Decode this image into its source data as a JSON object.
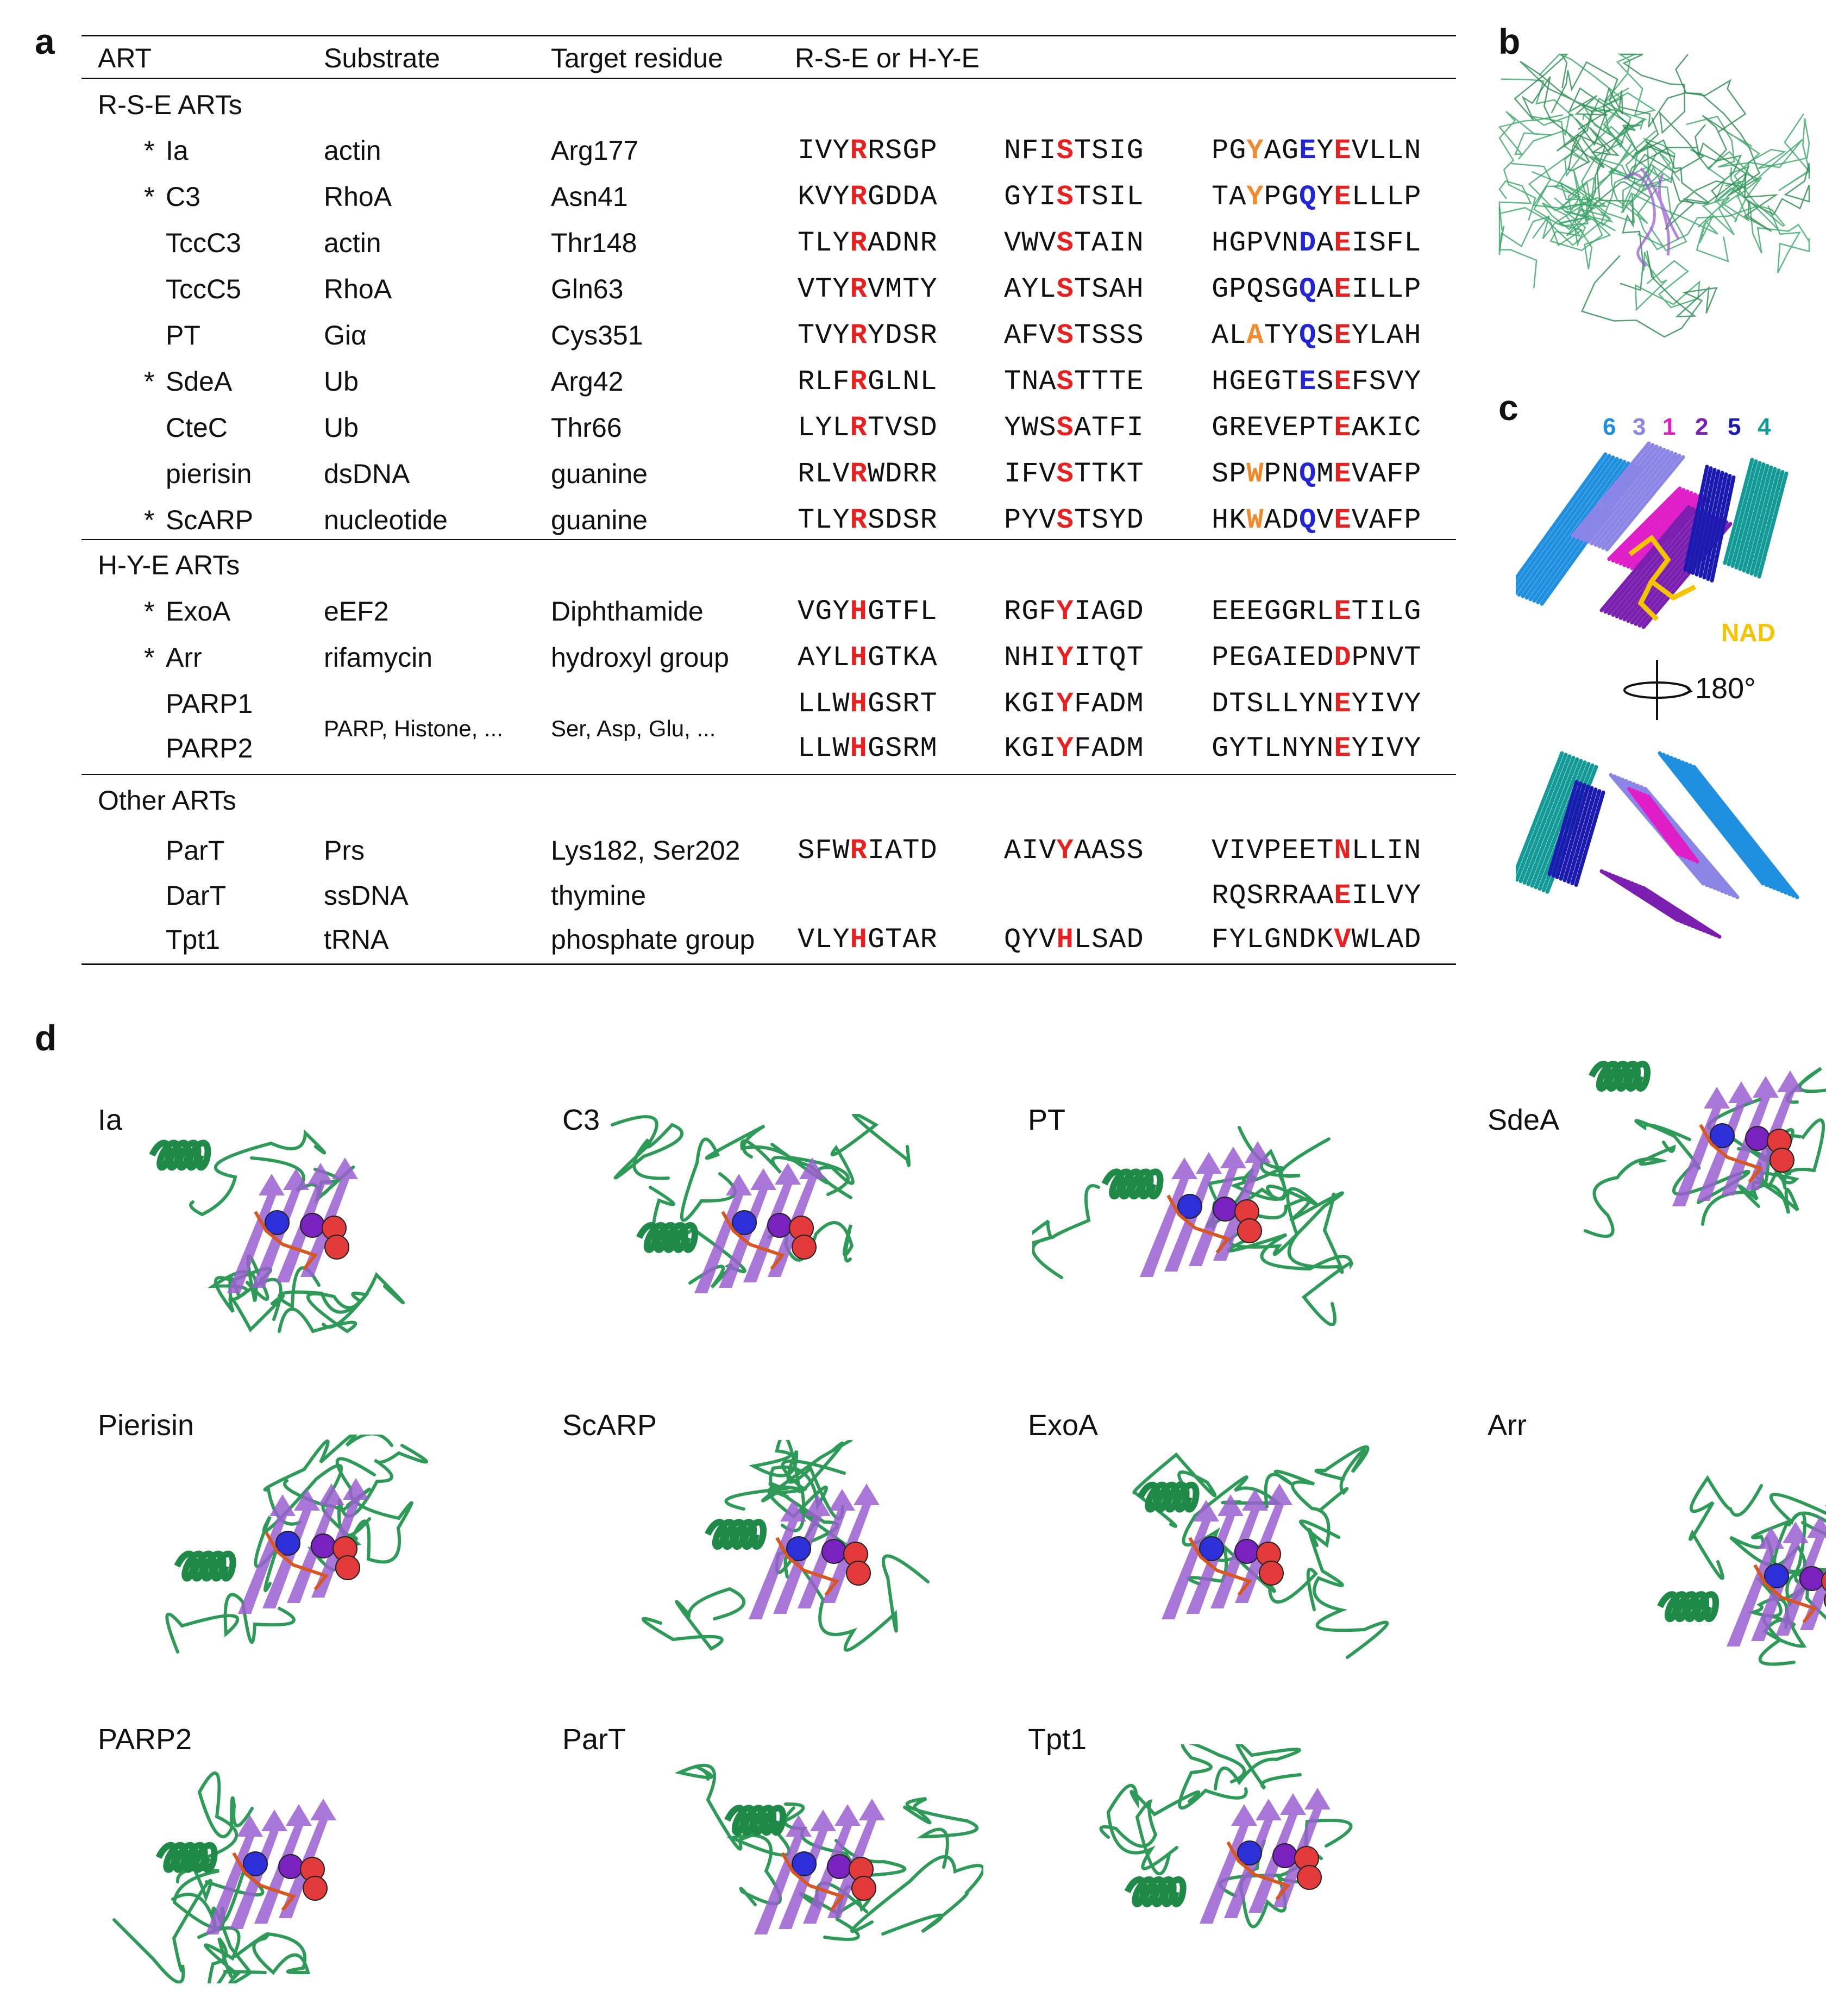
{
  "panels": {
    "a": "a",
    "b": "b",
    "c": "c",
    "d": "d"
  },
  "table": {
    "headers": [
      "ART",
      "Substrate",
      "Target residue",
      "R-S-E or H-Y-E"
    ],
    "sections": [
      {
        "title": "R-S-E ARTs"
      },
      {
        "title": "H-Y-E ARTs"
      },
      {
        "title": "Other ARTs"
      }
    ],
    "rows": [
      {
        "star": "*",
        "art": "Ia",
        "substrate": "actin",
        "target": "Arg177",
        "seq1": [
          [
            "IVY",
            ""
          ],
          [
            "R",
            "r"
          ],
          [
            "RSGP",
            ""
          ]
        ],
        "seq2": [
          [
            "NFI",
            ""
          ],
          [
            "S",
            "r"
          ],
          [
            "TSIG",
            ""
          ]
        ],
        "seq3": [
          [
            "PG",
            ""
          ],
          [
            "Y",
            "o"
          ],
          [
            "AG",
            ""
          ],
          [
            "E",
            "b"
          ],
          [
            "Y",
            ""
          ],
          [
            "E",
            "r"
          ],
          [
            "VLLN",
            ""
          ]
        ]
      },
      {
        "star": "*",
        "art": "C3",
        "substrate": "RhoA",
        "target": "Asn41",
        "seq1": [
          [
            "KVY",
            ""
          ],
          [
            "R",
            "r"
          ],
          [
            "GDDA",
            ""
          ]
        ],
        "seq2": [
          [
            "GYI",
            ""
          ],
          [
            "S",
            "r"
          ],
          [
            "TSIL",
            ""
          ]
        ],
        "seq3": [
          [
            "TA",
            ""
          ],
          [
            "Y",
            "o"
          ],
          [
            "PG",
            ""
          ],
          [
            "Q",
            "b"
          ],
          [
            "Y",
            ""
          ],
          [
            "E",
            "r"
          ],
          [
            "LLLP",
            ""
          ]
        ]
      },
      {
        "star": "",
        "art": "TccC3",
        "substrate": "actin",
        "target": "Thr148",
        "seq1": [
          [
            "TLY",
            ""
          ],
          [
            "R",
            "r"
          ],
          [
            "ADNR",
            ""
          ]
        ],
        "seq2": [
          [
            "VWV",
            ""
          ],
          [
            "S",
            "r"
          ],
          [
            "TAIN",
            ""
          ]
        ],
        "seq3": [
          [
            "HGPVN",
            ""
          ],
          [
            "D",
            "b"
          ],
          [
            "A",
            ""
          ],
          [
            "E",
            "r"
          ],
          [
            "ISFL",
            ""
          ]
        ]
      },
      {
        "star": "",
        "art": "TccC5",
        "substrate": "RhoA",
        "target": "Gln63",
        "seq1": [
          [
            "VTY",
            ""
          ],
          [
            "R",
            "r"
          ],
          [
            "VMTY",
            ""
          ]
        ],
        "seq2": [
          [
            "AYL",
            ""
          ],
          [
            "S",
            "r"
          ],
          [
            "TSAH",
            ""
          ]
        ],
        "seq3": [
          [
            "GPQSG",
            ""
          ],
          [
            "Q",
            "b"
          ],
          [
            "A",
            ""
          ],
          [
            "E",
            "r"
          ],
          [
            "ILLP",
            ""
          ]
        ]
      },
      {
        "star": "",
        "art": "PT",
        "substrate": "Giα",
        "target": "Cys351",
        "seq1": [
          [
            "TVY",
            ""
          ],
          [
            "R",
            "r"
          ],
          [
            "YDSR",
            ""
          ]
        ],
        "seq2": [
          [
            "AFV",
            ""
          ],
          [
            "S",
            "r"
          ],
          [
            "TSSS",
            ""
          ]
        ],
        "seq3": [
          [
            "AL",
            ""
          ],
          [
            "A",
            "o"
          ],
          [
            "TY",
            ""
          ],
          [
            "Q",
            "b"
          ],
          [
            "S",
            ""
          ],
          [
            "E",
            "r"
          ],
          [
            "YLAH",
            ""
          ]
        ]
      },
      {
        "star": "*",
        "art": "SdeA",
        "substrate": "Ub",
        "target": "Arg42",
        "seq1": [
          [
            "RLF",
            ""
          ],
          [
            "R",
            "r"
          ],
          [
            "GLNL",
            ""
          ]
        ],
        "seq2": [
          [
            "TNA",
            ""
          ],
          [
            "S",
            "r"
          ],
          [
            "TTTE",
            ""
          ]
        ],
        "seq3": [
          [
            "HGEGT",
            ""
          ],
          [
            "E",
            "b"
          ],
          [
            "S",
            ""
          ],
          [
            "E",
            "r"
          ],
          [
            "FSVY",
            ""
          ]
        ]
      },
      {
        "star": "",
        "art": "CteC",
        "substrate": "Ub",
        "target": "Thr66",
        "seq1": [
          [
            "LYL",
            ""
          ],
          [
            "R",
            "r"
          ],
          [
            "TVSD",
            ""
          ]
        ],
        "seq2": [
          [
            "YWS",
            ""
          ],
          [
            "S",
            "r"
          ],
          [
            "ATFI",
            ""
          ]
        ],
        "seq3": [
          [
            "GREVEPT",
            ""
          ],
          [
            "E",
            "r"
          ],
          [
            "AKIC",
            ""
          ]
        ]
      },
      {
        "star": "",
        "art": "pierisin",
        "substrate": "dsDNA",
        "target": "guanine",
        "seq1": [
          [
            "RLV",
            ""
          ],
          [
            "R",
            "r"
          ],
          [
            "WDRR",
            ""
          ]
        ],
        "seq2": [
          [
            "IFV",
            ""
          ],
          [
            "S",
            "r"
          ],
          [
            "TTKT",
            ""
          ]
        ],
        "seq3": [
          [
            "SP",
            ""
          ],
          [
            "W",
            "o"
          ],
          [
            "PN",
            ""
          ],
          [
            "Q",
            "b"
          ],
          [
            "M",
            ""
          ],
          [
            "E",
            "r"
          ],
          [
            "VAFP",
            ""
          ]
        ]
      },
      {
        "star": "*",
        "art": "ScARP",
        "substrate": "nucleotide",
        "target": "guanine",
        "seq1": [
          [
            "TLY",
            ""
          ],
          [
            "R",
            "r"
          ],
          [
            "SDSR",
            ""
          ]
        ],
        "seq2": [
          [
            "PYV",
            ""
          ],
          [
            "S",
            "r"
          ],
          [
            "TSYD",
            ""
          ]
        ],
        "seq3": [
          [
            "HK",
            ""
          ],
          [
            "W",
            "o"
          ],
          [
            "AD",
            ""
          ],
          [
            "Q",
            "b"
          ],
          [
            "V",
            ""
          ],
          [
            "E",
            "r"
          ],
          [
            "VAFP",
            ""
          ]
        ]
      },
      {
        "star": "*",
        "art": "ExoA",
        "substrate": "eEF2",
        "target": "Diphthamide",
        "seq1": [
          [
            "VGY",
            ""
          ],
          [
            "H",
            "r"
          ],
          [
            "GTFL",
            ""
          ]
        ],
        "seq2": [
          [
            "RGF",
            ""
          ],
          [
            "Y",
            "r"
          ],
          [
            "IAGD",
            ""
          ]
        ],
        "seq3": [
          [
            "EEEGGRL",
            ""
          ],
          [
            "E",
            "r"
          ],
          [
            "TILG",
            ""
          ]
        ]
      },
      {
        "star": "*",
        "art": "Arr",
        "substrate": "rifamycin",
        "target": "hydroxyl group",
        "seq1": [
          [
            "AYL",
            ""
          ],
          [
            "H",
            "r"
          ],
          [
            "GTKA",
            ""
          ]
        ],
        "seq2": [
          [
            "NHI",
            ""
          ],
          [
            "Y",
            "r"
          ],
          [
            "ITQT",
            ""
          ]
        ],
        "seq3": [
          [
            "PEGAIED",
            ""
          ],
          [
            "D",
            "r"
          ],
          [
            "PNVT",
            ""
          ]
        ]
      },
      {
        "star": "",
        "art": "PARP1",
        "substrate": "",
        "target": "",
        "seq1": [
          [
            "LLW",
            ""
          ],
          [
            "H",
            "r"
          ],
          [
            "GSRT",
            ""
          ]
        ],
        "seq2": [
          [
            "KGI",
            ""
          ],
          [
            "Y",
            "r"
          ],
          [
            "FADM",
            ""
          ]
        ],
        "seq3": [
          [
            "DTSLLYN",
            ""
          ],
          [
            "E",
            "r"
          ],
          [
            "YIVY",
            ""
          ]
        ]
      },
      {
        "star": "",
        "art": "PARP2",
        "substrate": "",
        "target": "",
        "seq1": [
          [
            "LLW",
            ""
          ],
          [
            "H",
            "r"
          ],
          [
            "GSRM",
            ""
          ]
        ],
        "seq2": [
          [
            "KGI",
            ""
          ],
          [
            "Y",
            "r"
          ],
          [
            "FADM",
            ""
          ]
        ],
        "seq3": [
          [
            "GYTLNYN",
            ""
          ],
          [
            "E",
            "r"
          ],
          [
            "YIVY",
            ""
          ]
        ]
      },
      {
        "star": "",
        "art": "ParT",
        "substrate": "Prs",
        "target": "Lys182, Ser202",
        "seq1": [
          [
            "SFW",
            ""
          ],
          [
            "R",
            "r"
          ],
          [
            "IATD",
            ""
          ]
        ],
        "seq2": [
          [
            "AIV",
            ""
          ],
          [
            "Y",
            "r"
          ],
          [
            "AASS",
            ""
          ]
        ],
        "seq3": [
          [
            "VIVPEET",
            ""
          ],
          [
            "N",
            "r"
          ],
          [
            "LLIN",
            ""
          ]
        ]
      },
      {
        "star": "",
        "art": "DarT",
        "substrate": "ssDNA",
        "target": "thymine",
        "seq1": [],
        "seq2": [],
        "seq3": [
          [
            "RQSRRAA",
            ""
          ],
          [
            "E",
            "r"
          ],
          [
            "ILVY",
            ""
          ]
        ]
      },
      {
        "star": "",
        "art": "Tpt1",
        "substrate": "tRNA",
        "target": "phosphate group",
        "seq1": [
          [
            "VLY",
            ""
          ],
          [
            "H",
            "r"
          ],
          [
            "GTAR",
            ""
          ]
        ],
        "seq2": [
          [
            "QYV",
            ""
          ],
          [
            "H",
            "r"
          ],
          [
            "LSAD",
            ""
          ]
        ],
        "seq3": [
          [
            "FYLGNDK",
            ""
          ],
          [
            "V",
            "r"
          ],
          [
            "WLAD",
            ""
          ]
        ]
      }
    ],
    "parp_shared": {
      "substrate": "PARP, Histone, ...",
      "target": "Ser, Asp, Glu, ..."
    }
  },
  "panel_c": {
    "strand_numbers": [
      "6",
      "3",
      "1",
      "2",
      "5",
      "4"
    ],
    "strand_colors": [
      "#1f8fe0",
      "#8b86e6",
      "#e01ec8",
      "#7a1fb0",
      "#1a1ab0",
      "#139a96"
    ],
    "nad_label": "NAD",
    "rotation_label": "180°"
  },
  "panel_d": {
    "structures": [
      "Ia",
      "C3",
      "PT",
      "SdeA",
      "Pierisin",
      "ScARP",
      "ExoA",
      "Arr",
      "PARP2",
      "ParT",
      "Tpt1"
    ]
  },
  "colors": {
    "green": "#2e9a57",
    "purple": "#9a5fd0",
    "red": "#e8201f",
    "blue": "#2225d6",
    "orange": "#f08a2c",
    "nad": "#f5c400"
  }
}
